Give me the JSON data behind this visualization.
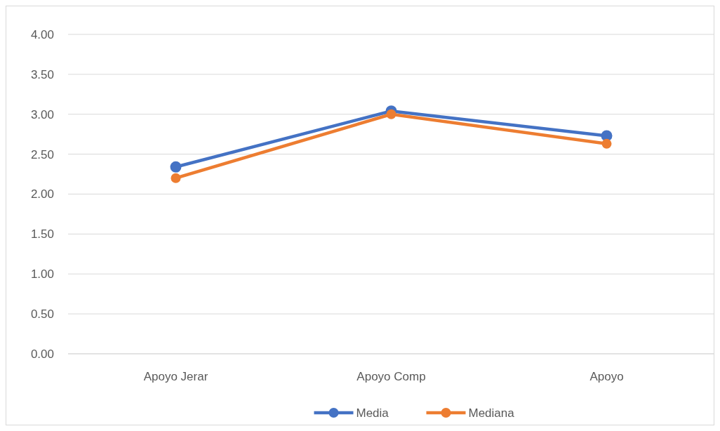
{
  "chart_data": {
    "type": "line",
    "categories": [
      "Apoyo Jerar",
      "Apoyo Comp",
      "Apoyo"
    ],
    "series": [
      {
        "name": "Media",
        "color": "#4472c4",
        "values": [
          2.34,
          3.04,
          2.73
        ]
      },
      {
        "name": "Mediana",
        "color": "#ed7d31",
        "values": [
          2.2,
          3.0,
          2.63
        ]
      }
    ],
    "ylim": [
      0,
      4
    ],
    "yticks": [
      {
        "value": 0,
        "label": "0.00"
      },
      {
        "value": 0.5,
        "label": "0.50"
      },
      {
        "value": 1,
        "label": "1.00"
      },
      {
        "value": 1.5,
        "label": "1.50"
      },
      {
        "value": 2,
        "label": "2.00"
      },
      {
        "value": 2.5,
        "label": "2.50"
      },
      {
        "value": 3,
        "label": "3.00"
      },
      {
        "value": 3.5,
        "label": "3.50"
      },
      {
        "value": 4,
        "label": "4.00"
      }
    ],
    "grid": "y",
    "legend": "bottom",
    "marker": "circle",
    "line_style": "solid"
  }
}
